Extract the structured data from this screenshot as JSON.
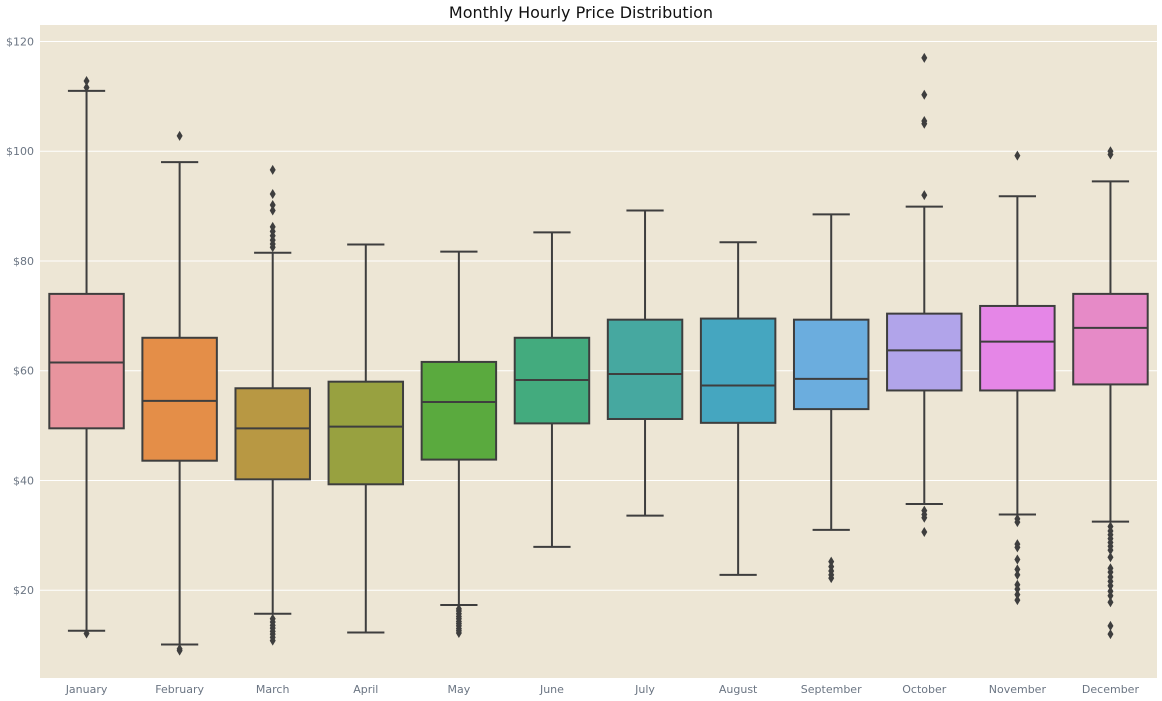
{
  "chart_data": {
    "type": "box",
    "title": "Monthly Hourly Price Distribution",
    "xlabel": "",
    "ylabel": "",
    "ylim": [
      4,
      123
    ],
    "yticks": [
      20,
      40,
      60,
      80,
      100,
      120
    ],
    "ytick_labels": [
      "$20",
      "$40",
      "$60",
      "$80",
      "$100",
      "$120"
    ],
    "grid": true,
    "background": "#ede6d5",
    "categories": [
      "January",
      "February",
      "March",
      "April",
      "May",
      "June",
      "July",
      "August",
      "September",
      "October",
      "November",
      "December"
    ],
    "boxes": [
      {
        "label": "January",
        "color": "#e8949e",
        "whisker_low": 12.6,
        "q1": 49.5,
        "median": 61.5,
        "q3": 74.0,
        "whisker_high": 111.0,
        "outliers": [
          112.8,
          111.6,
          12.1
        ]
      },
      {
        "label": "February",
        "color": "#e48e48",
        "whisker_low": 10.1,
        "q1": 43.6,
        "median": 54.5,
        "q3": 66.0,
        "whisker_high": 98.0,
        "outliers": [
          102.8,
          9.3,
          9.0
        ]
      },
      {
        "label": "March",
        "color": "#b89843",
        "whisker_low": 15.7,
        "q1": 40.2,
        "median": 49.5,
        "q3": 56.8,
        "whisker_high": 81.5,
        "outliers": [
          96.6,
          92.2,
          90.2,
          89.2,
          86.2,
          85.4,
          84.6,
          83.8,
          83.1,
          82.5,
          14.8,
          14.2,
          13.6,
          13.1,
          12.5,
          12.0,
          11.4,
          10.8
        ]
      },
      {
        "label": "April",
        "color": "#98a140",
        "whisker_low": 12.3,
        "q1": 39.3,
        "median": 49.8,
        "q3": 58.0,
        "whisker_high": 83.0,
        "outliers": []
      },
      {
        "label": "May",
        "color": "#5aaa3e",
        "whisker_low": 17.3,
        "q1": 43.8,
        "median": 54.3,
        "q3": 61.6,
        "whisker_high": 81.7,
        "outliers": [
          16.6,
          16.2,
          15.7,
          15.2,
          14.8,
          14.3,
          13.9,
          13.5,
          13.0,
          12.6,
          12.2
        ]
      },
      {
        "label": "June",
        "color": "#43ab7e",
        "whisker_low": 27.9,
        "q1": 50.4,
        "median": 58.3,
        "q3": 66.0,
        "whisker_high": 85.2,
        "outliers": []
      },
      {
        "label": "July",
        "color": "#46a8a0",
        "whisker_low": 33.6,
        "q1": 51.2,
        "median": 59.4,
        "q3": 69.3,
        "whisker_high": 89.2,
        "outliers": []
      },
      {
        "label": "August",
        "color": "#45a6c0",
        "whisker_low": 22.8,
        "q1": 50.5,
        "median": 57.3,
        "q3": 69.5,
        "whisker_high": 83.4,
        "outliers": []
      },
      {
        "label": "September",
        "color": "#6badde",
        "whisker_low": 31.0,
        "q1": 53.0,
        "median": 58.5,
        "q3": 69.3,
        "whisker_high": 88.5,
        "outliers": [
          25.2,
          24.3,
          23.5,
          22.8,
          22.2
        ]
      },
      {
        "label": "October",
        "color": "#b1a4ea",
        "whisker_low": 35.7,
        "q1": 56.4,
        "median": 63.7,
        "q3": 70.4,
        "whisker_high": 89.9,
        "outliers": [
          117.0,
          110.3,
          105.5,
          105.0,
          92.0,
          34.5,
          33.8,
          33.2,
          30.6
        ]
      },
      {
        "label": "November",
        "color": "#e586e7",
        "whisker_low": 33.8,
        "q1": 56.4,
        "median": 65.3,
        "q3": 71.8,
        "whisker_high": 91.8,
        "outliers": [
          99.2,
          33.0,
          32.4,
          28.4,
          27.8,
          25.6,
          23.8,
          22.8,
          21.0,
          20.2,
          19.2,
          18.2
        ]
      },
      {
        "label": "December",
        "color": "#e68ac7",
        "whisker_low": 32.5,
        "q1": 57.5,
        "median": 67.8,
        "q3": 74.0,
        "whisker_high": 94.5,
        "outliers": [
          100.0,
          99.4,
          31.6,
          30.8,
          30.1,
          29.4,
          28.7,
          28.0,
          27.3,
          26.0,
          24.0,
          23.3,
          22.4,
          21.6,
          20.8,
          19.8,
          19.0,
          17.8,
          13.5,
          12.0
        ]
      }
    ]
  }
}
